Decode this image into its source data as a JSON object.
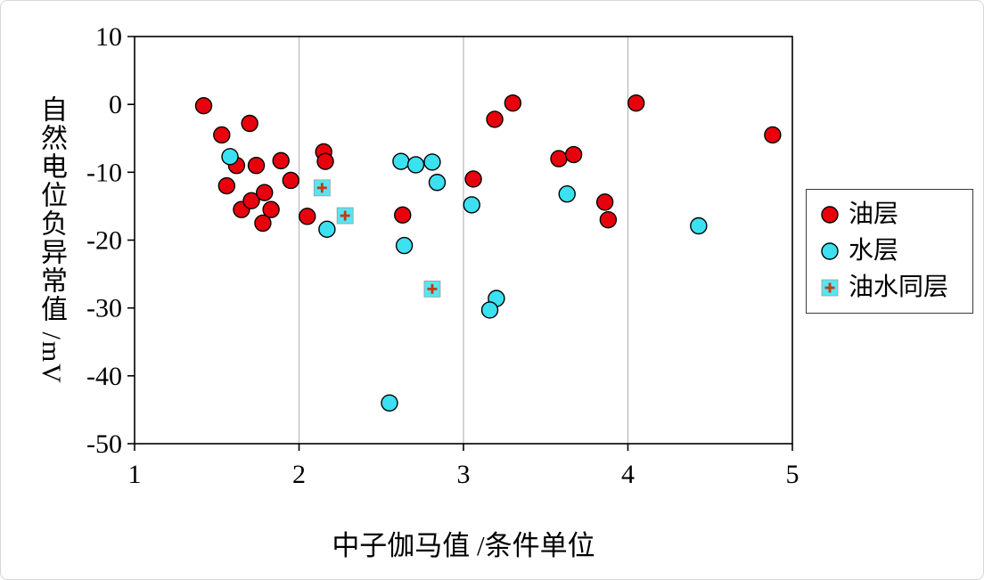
{
  "chart_data": {
    "type": "scatter",
    "title": "",
    "xlabel": "中子伽马值 /条件单位",
    "ylabel": "自然电位负异常值 /mV",
    "xlim": [
      1,
      5
    ],
    "ylim": [
      -50,
      10
    ],
    "x_ticks": [
      1,
      2,
      3,
      4,
      5
    ],
    "y_ticks": [
      10,
      0,
      -10,
      -20,
      -30,
      -40,
      -50
    ],
    "grid_x": [
      2,
      3,
      4
    ],
    "legend_position": "right",
    "colors": {
      "grid": "#b8b8b8",
      "frame": "#000000",
      "oil": "#e8000d",
      "water": "#3be1f0",
      "oil_water_square": "#56e6f2",
      "oil_water_plus": "#c23a14"
    },
    "series": [
      {
        "name": "油层",
        "marker": "circle",
        "color": "#e8000d",
        "points": [
          [
            1.42,
            -0.2
          ],
          [
            1.53,
            -4.5
          ],
          [
            1.7,
            -2.8
          ],
          [
            1.62,
            -9.0
          ],
          [
            1.74,
            -9.0
          ],
          [
            1.56,
            -12.0
          ],
          [
            1.65,
            -15.5
          ],
          [
            1.71,
            -14.2
          ],
          [
            1.79,
            -13.0
          ],
          [
            1.83,
            -15.5
          ],
          [
            1.78,
            -17.5
          ],
          [
            1.89,
            -8.3
          ],
          [
            1.95,
            -11.2
          ],
          [
            2.05,
            -16.5
          ],
          [
            2.15,
            -7.0
          ],
          [
            2.16,
            -8.4
          ],
          [
            2.63,
            -16.3
          ],
          [
            3.06,
            -11.0
          ],
          [
            3.19,
            -2.2
          ],
          [
            3.3,
            0.2
          ],
          [
            3.58,
            -8.0
          ],
          [
            3.67,
            -7.4
          ],
          [
            3.86,
            -14.4
          ],
          [
            3.88,
            -17.0
          ],
          [
            4.05,
            0.2
          ],
          [
            4.88,
            -4.5
          ]
        ]
      },
      {
        "name": "水层",
        "marker": "circle",
        "color": "#3be1f0",
        "points": [
          [
            1.58,
            -7.7
          ],
          [
            2.17,
            -18.4
          ],
          [
            2.62,
            -8.4
          ],
          [
            2.71,
            -8.9
          ],
          [
            2.64,
            -20.8
          ],
          [
            2.55,
            -44.0
          ],
          [
            2.81,
            -8.5
          ],
          [
            2.84,
            -11.5
          ],
          [
            3.05,
            -14.8
          ],
          [
            3.2,
            -28.6
          ],
          [
            3.16,
            -30.3
          ],
          [
            3.63,
            -13.2
          ],
          [
            4.43,
            -17.9
          ]
        ]
      },
      {
        "name": "油水同层",
        "marker": "square-plus",
        "color": "#56e6f2",
        "plus_color": "#c23a14",
        "points": [
          [
            2.14,
            -12.3
          ],
          [
            2.28,
            -16.4
          ],
          [
            2.81,
            -27.2
          ]
        ]
      }
    ]
  }
}
